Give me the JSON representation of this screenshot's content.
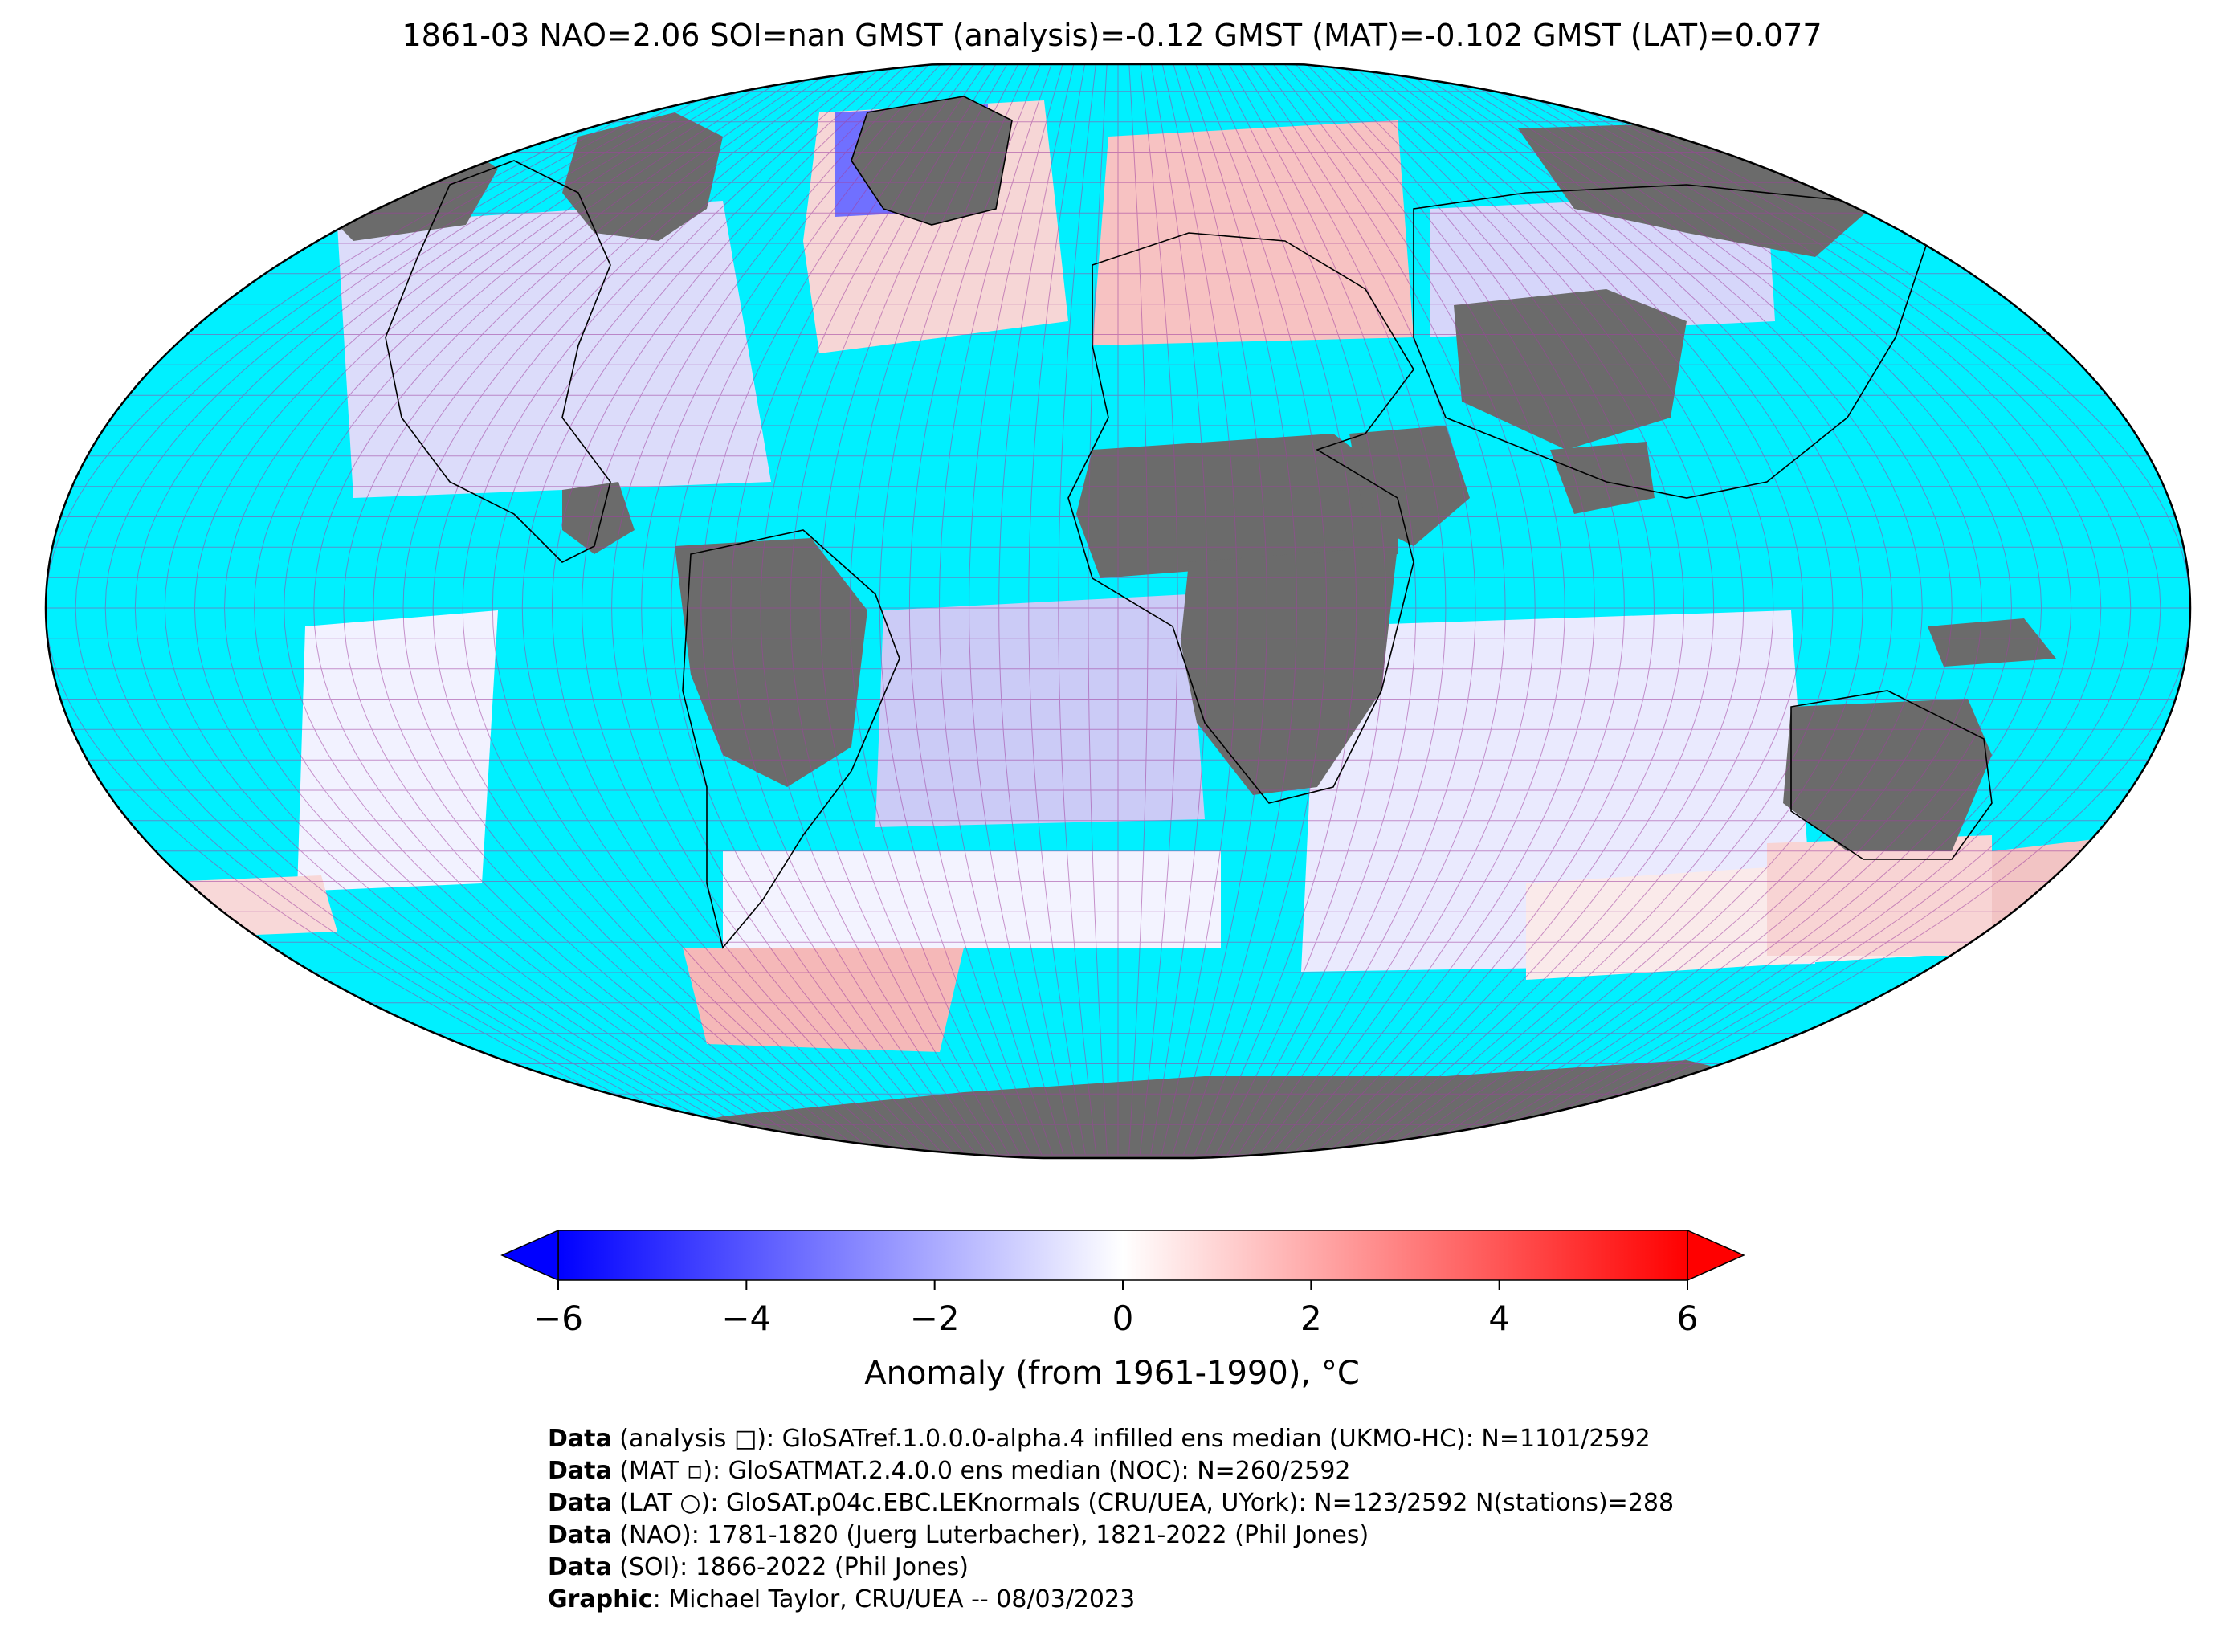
{
  "title": "1861-03 NAO=2.06 SOI=nan GMST (analysis)=-0.12 GMST (MAT)=-0.102 GMST (LAT)=0.077",
  "map": {
    "projection": "Robinson",
    "colors": {
      "ocean_no_data": "#00f0ff",
      "land_no_data": "#6b6b6b",
      "grid_line": "#a040a0",
      "coastline": "#000000"
    }
  },
  "colorbar": {
    "min": -6,
    "max": 6,
    "ticks": [
      -6,
      -4,
      -2,
      0,
      2,
      4,
      6
    ],
    "tick_labels": [
      "−6",
      "−4",
      "−2",
      "0",
      "2",
      "4",
      "6"
    ],
    "label": "Anomaly (from 1961-1990), °C",
    "extend": "both",
    "colormap": {
      "low": "#0000ff",
      "mid": "#ffffff",
      "high": "#ff0000"
    }
  },
  "credits": [
    {
      "bold": "Data",
      "text": " (analysis □): GloSATref.1.0.0.0-alpha.4 infilled ens median (UKMO-HC): N=1101/2592"
    },
    {
      "bold": "Data",
      "text": " (MAT ▫): GloSATMAT.2.4.0.0 ens median (NOC): N=260/2592"
    },
    {
      "bold": "Data",
      "text": " (LAT ○): GloSAT.p04c.EBC.LEKnormals (CRU/UEA, UYork): N=123/2592 N(stations)=288"
    },
    {
      "bold": "Data",
      "text": " (NAO): 1781-1820 (Juerg Luterbacher), 1821-2022 (Phil Jones)"
    },
    {
      "bold": "Data",
      "text": " (SOI): 1866-2022 (Phil Jones)"
    },
    {
      "bold": "Graphic",
      "text": ": Michael Taylor, CRU/UEA -- 08/03/2023"
    }
  ]
}
